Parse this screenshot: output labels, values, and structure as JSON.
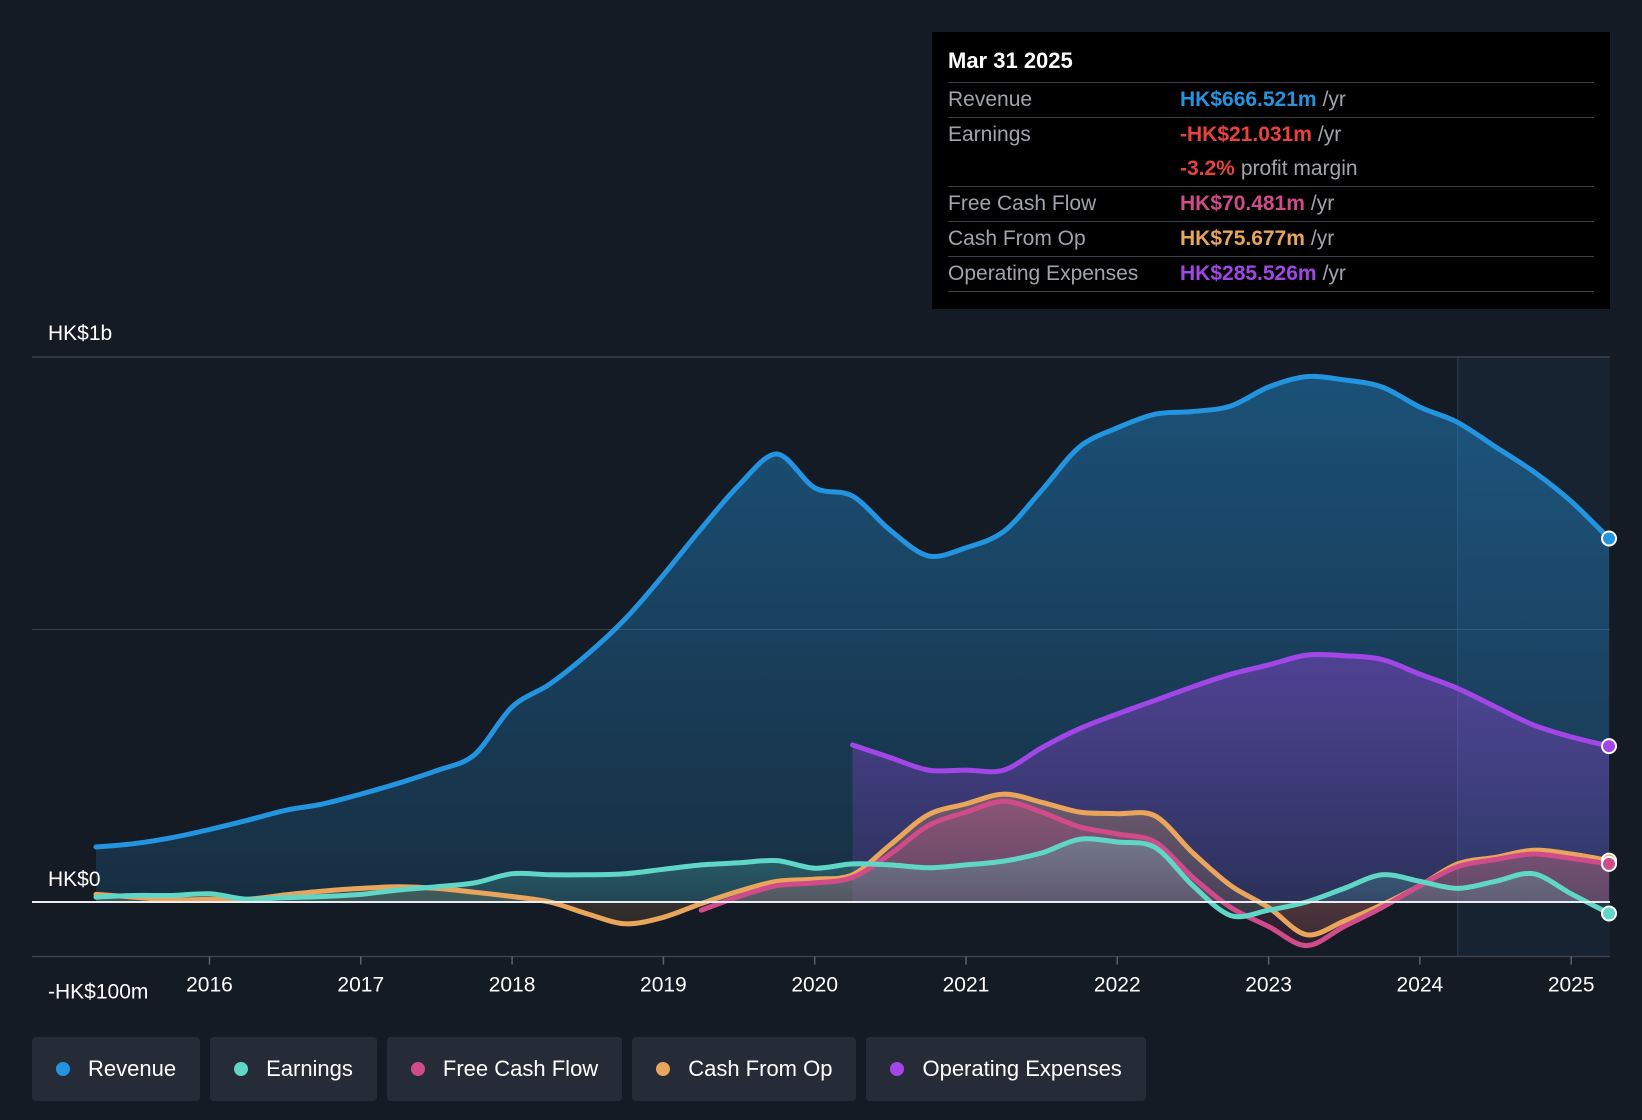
{
  "chart_data": {
    "type": "area",
    "title": "",
    "y_tick_labels": [
      {
        "value": 1000,
        "label": "HK$1b"
      },
      {
        "value": 0,
        "label": "HK$0"
      },
      {
        "value": -100,
        "label": "-HK$100m"
      }
    ],
    "ylim": [
      -100,
      1000
    ],
    "xlim": [
      2015.25,
      2025.25
    ],
    "x_tick_labels": [
      "2016",
      "2017",
      "2018",
      "2019",
      "2020",
      "2021",
      "2022",
      "2023",
      "2024",
      "2025"
    ],
    "x_ticks": [
      2016,
      2017,
      2018,
      2019,
      2020,
      2021,
      2022,
      2023,
      2024,
      2025
    ],
    "highlight_start": 2024.25,
    "series": [
      {
        "name": "Revenue",
        "color": "#2394df",
        "fill": true,
        "x": [
          2015.25,
          2015.5,
          2015.75,
          2016.0,
          2016.25,
          2016.5,
          2016.75,
          2017.0,
          2017.25,
          2017.5,
          2017.75,
          2018.0,
          2018.25,
          2018.5,
          2018.75,
          2019.0,
          2019.25,
          2019.5,
          2019.75,
          2020.0,
          2020.25,
          2020.5,
          2020.75,
          2021.0,
          2021.25,
          2021.5,
          2021.75,
          2022.0,
          2022.25,
          2022.5,
          2022.75,
          2023.0,
          2023.25,
          2023.5,
          2023.75,
          2024.0,
          2024.25,
          2024.5,
          2024.75,
          2025.0,
          2025.25
        ],
        "values": [
          101,
          107,
          118,
          133,
          150,
          168,
          180,
          198,
          218,
          241,
          270,
          358,
          400,
          455,
          520,
          600,
          685,
          765,
          822,
          760,
          745,
          682,
          635,
          650,
          680,
          755,
          835,
          870,
          895,
          900,
          910,
          945,
          964,
          958,
          945,
          908,
          880,
          835,
          790,
          735,
          667
        ]
      },
      {
        "name": "Operating Expenses",
        "color": "#a246e8",
        "fill": true,
        "x": [
          2020.25,
          2020.5,
          2020.75,
          2021.0,
          2021.25,
          2021.5,
          2021.75,
          2022.0,
          2022.25,
          2022.5,
          2022.75,
          2023.0,
          2023.25,
          2023.5,
          2023.75,
          2024.0,
          2024.25,
          2024.5,
          2024.75,
          2025.0,
          2025.25
        ],
        "values": [
          288,
          265,
          242,
          242,
          242,
          283,
          318,
          345,
          370,
          395,
          418,
          435,
          453,
          452,
          445,
          418,
          392,
          358,
          325,
          303,
          286
        ]
      },
      {
        "name": "Cash From Op",
        "color": "#e8a55b",
        "fill": true,
        "x": [
          2015.25,
          2015.5,
          2015.75,
          2016.0,
          2016.25,
          2016.5,
          2016.75,
          2017.0,
          2017.25,
          2017.5,
          2017.75,
          2018.0,
          2018.25,
          2018.5,
          2018.75,
          2019.0,
          2019.25,
          2019.5,
          2019.75,
          2020.0,
          2020.25,
          2020.5,
          2020.75,
          2021.0,
          2021.25,
          2021.5,
          2021.75,
          2022.0,
          2022.25,
          2022.5,
          2022.75,
          2023.0,
          2023.25,
          2023.5,
          2023.75,
          2024.0,
          2024.25,
          2024.5,
          2024.75,
          2025.0,
          2025.25
        ],
        "values": [
          14,
          9,
          4,
          5,
          5,
          13,
          20,
          25,
          28,
          25,
          18,
          10,
          0,
          -22,
          -40,
          -28,
          -3,
          20,
          38,
          42,
          50,
          105,
          160,
          180,
          198,
          183,
          165,
          162,
          158,
          90,
          30,
          -10,
          -60,
          -35,
          -5,
          30,
          70,
          82,
          95,
          88,
          76
        ]
      },
      {
        "name": "Free Cash Flow",
        "color": "#cf4b8a",
        "fill": true,
        "x": [
          2019.25,
          2019.5,
          2019.75,
          2020.0,
          2020.25,
          2020.5,
          2020.75,
          2021.0,
          2021.25,
          2021.5,
          2021.75,
          2022.0,
          2022.25,
          2022.5,
          2022.75,
          2023.0,
          2023.25,
          2023.5,
          2023.75,
          2024.0,
          2024.25,
          2024.5,
          2024.75,
          2025.0,
          2025.25
        ],
        "values": [
          -15,
          10,
          30,
          35,
          45,
          88,
          140,
          165,
          185,
          165,
          138,
          125,
          110,
          45,
          -10,
          -45,
          -80,
          -45,
          -10,
          30,
          65,
          78,
          88,
          80,
          70
        ]
      },
      {
        "name": "Earnings",
        "color": "#5fd6c6",
        "fill": true,
        "x": [
          2015.25,
          2015.5,
          2015.75,
          2016.0,
          2016.25,
          2016.5,
          2016.75,
          2017.0,
          2017.25,
          2017.5,
          2017.75,
          2018.0,
          2018.25,
          2018.5,
          2018.75,
          2019.0,
          2019.25,
          2019.5,
          2019.75,
          2020.0,
          2020.25,
          2020.5,
          2020.75,
          2021.0,
          2021.25,
          2021.5,
          2021.75,
          2022.0,
          2022.25,
          2022.5,
          2022.75,
          2023.0,
          2023.25,
          2023.5,
          2023.75,
          2024.0,
          2024.25,
          2024.5,
          2024.75,
          2025.0,
          2025.25
        ],
        "values": [
          9,
          12,
          12,
          15,
          5,
          8,
          10,
          14,
          22,
          28,
          35,
          52,
          50,
          50,
          52,
          60,
          68,
          72,
          76,
          62,
          70,
          68,
          63,
          68,
          75,
          90,
          115,
          110,
          100,
          30,
          -25,
          -15,
          0,
          25,
          50,
          38,
          25,
          38,
          52,
          15,
          -21
        ]
      }
    ],
    "tooltip": {
      "date": "Mar 31 2025",
      "rows": [
        {
          "label": "Revenue",
          "value": "HK$666.521m",
          "unit": "/yr",
          "color": "#2394df"
        },
        {
          "label": "Earnings",
          "value": "-HK$21.031m",
          "unit": "/yr",
          "color": "#e8423e"
        },
        {
          "label": "",
          "value": "-3.2%",
          "unit": "profit margin",
          "color": "#e8423e"
        },
        {
          "label": "Free Cash Flow",
          "value": "HK$70.481m",
          "unit": "/yr",
          "color": "#cf4b8a"
        },
        {
          "label": "Cash From Op",
          "value": "HK$75.677m",
          "unit": "/yr",
          "color": "#e8a55b"
        },
        {
          "label": "Operating Expenses",
          "value": "HK$285.526m",
          "unit": "/yr",
          "color": "#a246e8"
        }
      ]
    },
    "legend": [
      {
        "label": "Revenue",
        "color": "#2394df"
      },
      {
        "label": "Earnings",
        "color": "#5fd6c6"
      },
      {
        "label": "Free Cash Flow",
        "color": "#cf4b8a"
      },
      {
        "label": "Cash From Op",
        "color": "#e8a55b"
      },
      {
        "label": "Operating Expenses",
        "color": "#a246e8"
      }
    ]
  }
}
